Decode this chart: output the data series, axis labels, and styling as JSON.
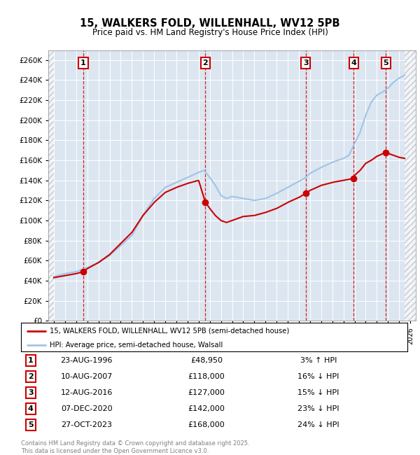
{
  "title": "15, WALKERS FOLD, WILLENHALL, WV12 5PB",
  "subtitle": "Price paid vs. HM Land Registry's House Price Index (HPI)",
  "ylim": [
    0,
    270000
  ],
  "yticks": [
    0,
    20000,
    40000,
    60000,
    80000,
    100000,
    120000,
    140000,
    160000,
    180000,
    200000,
    220000,
    240000,
    260000
  ],
  "xlim_start": 1993.5,
  "xlim_end": 2026.5,
  "hatch_left_end": 1994.0,
  "hatch_right_start": 2025.5,
  "bg_color": "#dce6f1",
  "hpi_color": "#a0c4e8",
  "price_color": "#cc0000",
  "grid_color": "#ffffff",
  "sale_dates": [
    1996.64,
    2007.61,
    2016.62,
    2020.93,
    2023.82
  ],
  "sale_prices": [
    48950,
    118000,
    127000,
    142000,
    168000
  ],
  "sale_labels": [
    "1",
    "2",
    "3",
    "4",
    "5"
  ],
  "sale_dates_str": [
    "23-AUG-1996",
    "10-AUG-2007",
    "12-AUG-2016",
    "07-DEC-2020",
    "27-OCT-2023"
  ],
  "sale_prices_str": [
    "£48,950",
    "£118,000",
    "£127,000",
    "£142,000",
    "£168,000"
  ],
  "sale_hpi_str": [
    "3% ↑ HPI",
    "16% ↓ HPI",
    "15% ↓ HPI",
    "23% ↓ HPI",
    "24% ↓ HPI"
  ],
  "legend_property": "15, WALKERS FOLD, WILLENHALL, WV12 5PB (semi-detached house)",
  "legend_hpi": "HPI: Average price, semi-detached house, Walsall",
  "footnote": "Contains HM Land Registry data © Crown copyright and database right 2025.\nThis data is licensed under the Open Government Licence v3.0.",
  "hpi_knots": [
    [
      1994.0,
      44000
    ],
    [
      1995.0,
      47000
    ],
    [
      1996.0,
      49000
    ],
    [
      1997.0,
      53000
    ],
    [
      1998.0,
      58000
    ],
    [
      1999.0,
      65000
    ],
    [
      2000.0,
      75000
    ],
    [
      2001.0,
      85000
    ],
    [
      2002.0,
      105000
    ],
    [
      2003.0,
      122000
    ],
    [
      2004.0,
      133000
    ],
    [
      2005.0,
      138000
    ],
    [
      2006.0,
      143000
    ],
    [
      2007.0,
      148000
    ],
    [
      2007.5,
      150000
    ],
    [
      2008.0,
      143000
    ],
    [
      2008.5,
      135000
    ],
    [
      2009.0,
      125000
    ],
    [
      2009.5,
      122000
    ],
    [
      2010.0,
      124000
    ],
    [
      2011.0,
      122000
    ],
    [
      2012.0,
      120000
    ],
    [
      2013.0,
      122000
    ],
    [
      2014.0,
      127000
    ],
    [
      2015.0,
      133000
    ],
    [
      2016.0,
      139000
    ],
    [
      2016.5,
      142000
    ],
    [
      2017.0,
      147000
    ],
    [
      2018.0,
      153000
    ],
    [
      2019.0,
      158000
    ],
    [
      2020.0,
      162000
    ],
    [
      2020.5,
      165000
    ],
    [
      2021.0,
      177000
    ],
    [
      2021.5,
      188000
    ],
    [
      2022.0,
      205000
    ],
    [
      2022.5,
      218000
    ],
    [
      2023.0,
      225000
    ],
    [
      2023.5,
      228000
    ],
    [
      2024.0,
      232000
    ],
    [
      2024.5,
      238000
    ],
    [
      2025.0,
      242000
    ],
    [
      2025.5,
      245000
    ]
  ],
  "price_knots": [
    [
      1994.0,
      43000
    ],
    [
      1995.0,
      45000
    ],
    [
      1996.0,
      47000
    ],
    [
      1996.64,
      48950
    ],
    [
      1997.0,
      52000
    ],
    [
      1998.0,
      58000
    ],
    [
      1999.0,
      66000
    ],
    [
      2000.0,
      77000
    ],
    [
      2001.0,
      88000
    ],
    [
      2002.0,
      105000
    ],
    [
      2003.0,
      118000
    ],
    [
      2004.0,
      128000
    ],
    [
      2005.0,
      133000
    ],
    [
      2006.0,
      137000
    ],
    [
      2007.0,
      140000
    ],
    [
      2007.61,
      118000
    ],
    [
      2008.0,
      112000
    ],
    [
      2008.5,
      105000
    ],
    [
      2009.0,
      100000
    ],
    [
      2009.5,
      98000
    ],
    [
      2010.0,
      100000
    ],
    [
      2011.0,
      104000
    ],
    [
      2012.0,
      105000
    ],
    [
      2013.0,
      108000
    ],
    [
      2014.0,
      112000
    ],
    [
      2015.0,
      118000
    ],
    [
      2016.0,
      123000
    ],
    [
      2016.62,
      127000
    ],
    [
      2017.0,
      130000
    ],
    [
      2018.0,
      135000
    ],
    [
      2019.0,
      138000
    ],
    [
      2020.0,
      140000
    ],
    [
      2020.93,
      142000
    ],
    [
      2021.0,
      145000
    ],
    [
      2021.5,
      150000
    ],
    [
      2022.0,
      157000
    ],
    [
      2022.5,
      160000
    ],
    [
      2023.0,
      164000
    ],
    [
      2023.82,
      168000
    ],
    [
      2024.0,
      167000
    ],
    [
      2024.5,
      165000
    ],
    [
      2025.0,
      163000
    ],
    [
      2025.5,
      162000
    ]
  ]
}
